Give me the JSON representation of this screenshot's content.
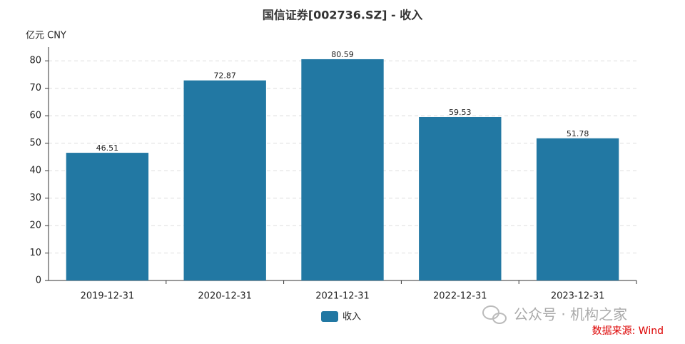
{
  "chart_data": {
    "type": "bar",
    "title": "国信证券[002736.SZ] - 收入",
    "y_unit": "亿元  CNY",
    "categories": [
      "2019-12-31",
      "2020-12-31",
      "2021-12-31",
      "2022-12-31",
      "2023-12-31"
    ],
    "series": [
      {
        "name": "收入",
        "color": "#2278a3",
        "values": [
          46.51,
          72.87,
          80.59,
          59.53,
          51.78
        ]
      }
    ],
    "ylim": [
      0,
      85
    ],
    "yticks": [
      0,
      10,
      20,
      30,
      40,
      50,
      60,
      70,
      80
    ],
    "grid": true,
    "watermark": "公众号 · 机构之家",
    "source": "数据来源: Wind"
  }
}
